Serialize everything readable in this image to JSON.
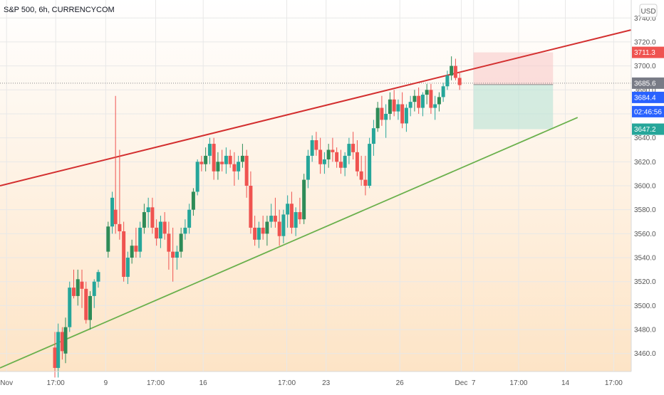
{
  "header": {
    "symbol_label": "S&P 500, 6h, CURRENCYCOM"
  },
  "currency_badge": "USD",
  "chart_data": {
    "type": "candlestick",
    "title": "S&P 500, 6h, CURRENCYCOM",
    "y_ticks": [
      "3740.0",
      "3720.0",
      "3700.0",
      "3680.0",
      "3660.0",
      "3640.0",
      "3620.0",
      "3600.0",
      "3580.0",
      "3560.0",
      "3540.0",
      "3520.0",
      "3500.0",
      "3480.0",
      "3460.0"
    ],
    "x_ticks": [
      "Nov",
      "17:00",
      "9",
      "17:00",
      "16",
      "17:00",
      "23",
      "26",
      "Dec",
      "7",
      "17:00",
      "14",
      "17:00"
    ],
    "ylim": [
      3445,
      3755
    ],
    "price_labels": {
      "target_top": "3711.3",
      "last_price": "3685.6",
      "entry": "3684.4",
      "countdown": "02:46:56",
      "stop_bottom": "3647.2"
    },
    "trendlines": [
      {
        "name": "resistance",
        "color": "#d32f2f",
        "points": [
          [
            0,
            3600
          ],
          [
            77,
            3730
          ]
        ]
      },
      {
        "name": "support",
        "color": "#6ab04c",
        "points": [
          [
            0,
            3448
          ],
          [
            70.5,
            3657
          ]
        ]
      }
    ],
    "position_box": {
      "x_start": 57.8,
      "x_end": 67.5,
      "top": 3711.3,
      "entry": 3684.4,
      "bottom": 3647.2
    },
    "colors": {
      "up": "#26a69a",
      "up_alt": "#2e8b57",
      "down": "#ef5350",
      "grid": "#e8e8e8"
    },
    "candles": [
      [
        6.7,
        3465,
        3478,
        3440,
        3448
      ],
      [
        7.1,
        3448,
        3485,
        3440,
        3478
      ],
      [
        7.6,
        3478,
        3482,
        3455,
        3462
      ],
      [
        8.0,
        3460,
        3490,
        3452,
        3482
      ],
      [
        8.5,
        3482,
        3520,
        3478,
        3515
      ],
      [
        9.0,
        3515,
        3530,
        3506,
        3508
      ],
      [
        9.5,
        3508,
        3530,
        3500,
        3522
      ],
      [
        10.0,
        3520,
        3530,
        3498,
        3514
      ],
      [
        10.5,
        3514,
        3520,
        3485,
        3488
      ],
      [
        11.0,
        3488,
        3512,
        3480,
        3508
      ],
      [
        11.5,
        3508,
        3522,
        3498,
        3520
      ],
      [
        12.0,
        3520,
        3530,
        3515,
        3528
      ],
      [
        13.2,
        3545,
        3570,
        3540,
        3566
      ],
      [
        13.7,
        3566,
        3595,
        3560,
        3590
      ],
      [
        14.1,
        3580,
        3675,
        3560,
        3568
      ],
      [
        14.6,
        3568,
        3630,
        3555,
        3562
      ],
      [
        15.1,
        3562,
        3570,
        3520,
        3524
      ],
      [
        15.6,
        3524,
        3545,
        3518,
        3540
      ],
      [
        16.1,
        3540,
        3555,
        3535,
        3550
      ],
      [
        16.6,
        3550,
        3565,
        3540,
        3545
      ],
      [
        17.1,
        3545,
        3570,
        3540,
        3565
      ],
      [
        17.6,
        3565,
        3585,
        3560,
        3578
      ],
      [
        18.1,
        3578,
        3590,
        3565,
        3582
      ],
      [
        18.6,
        3582,
        3590,
        3560,
        3565
      ],
      [
        19.1,
        3565,
        3572,
        3550,
        3556
      ],
      [
        19.6,
        3556,
        3575,
        3548,
        3570
      ],
      [
        20.1,
        3570,
        3578,
        3555,
        3560
      ],
      [
        20.6,
        3560,
        3570,
        3530,
        3545
      ],
      [
        21.1,
        3545,
        3565,
        3520,
        3540
      ],
      [
        21.6,
        3540,
        3550,
        3530,
        3545
      ],
      [
        22.1,
        3545,
        3565,
        3540,
        3560
      ],
      [
        22.6,
        3560,
        3572,
        3555,
        3565
      ],
      [
        23.1,
        3565,
        3585,
        3560,
        3580
      ],
      [
        23.6,
        3580,
        3598,
        3575,
        3595
      ],
      [
        24.1,
        3595,
        3622,
        3592,
        3620
      ],
      [
        24.6,
        3620,
        3625,
        3612,
        3618
      ],
      [
        25.1,
        3618,
        3632,
        3612,
        3625
      ],
      [
        25.6,
        3625,
        3640,
        3618,
        3635
      ],
      [
        26.1,
        3635,
        3640,
        3605,
        3612
      ],
      [
        26.6,
        3612,
        3628,
        3605,
        3620
      ],
      [
        27.1,
        3620,
        3630,
        3612,
        3618
      ],
      [
        27.6,
        3618,
        3632,
        3610,
        3625
      ],
      [
        28.1,
        3625,
        3630,
        3615,
        3618
      ],
      [
        28.6,
        3618,
        3628,
        3600,
        3612
      ],
      [
        29.1,
        3612,
        3625,
        3605,
        3620
      ],
      [
        29.6,
        3620,
        3635,
        3615,
        3625
      ],
      [
        30.1,
        3625,
        3630,
        3590,
        3600
      ],
      [
        30.6,
        3600,
        3612,
        3560,
        3565
      ],
      [
        31.1,
        3565,
        3575,
        3550,
        3555
      ],
      [
        31.6,
        3555,
        3570,
        3548,
        3565
      ],
      [
        32.1,
        3565,
        3575,
        3555,
        3560
      ],
      [
        32.6,
        3560,
        3575,
        3550,
        3570
      ],
      [
        33.1,
        3570,
        3585,
        3565,
        3575
      ],
      [
        33.6,
        3575,
        3590,
        3565,
        3570
      ],
      [
        34.1,
        3570,
        3580,
        3550,
        3558
      ],
      [
        34.6,
        3558,
        3580,
        3552,
        3576
      ],
      [
        35.1,
        3576,
        3592,
        3565,
        3585
      ],
      [
        35.6,
        3585,
        3595,
        3560,
        3565
      ],
      [
        36.1,
        3565,
        3582,
        3558,
        3578
      ],
      [
        36.6,
        3578,
        3590,
        3568,
        3572
      ],
      [
        37.1,
        3572,
        3610,
        3568,
        3605
      ],
      [
        37.6,
        3605,
        3630,
        3598,
        3625
      ],
      [
        38.1,
        3625,
        3642,
        3620,
        3638
      ],
      [
        38.6,
        3638,
        3645,
        3625,
        3630
      ],
      [
        39.1,
        3630,
        3640,
        3610,
        3618
      ],
      [
        39.6,
        3618,
        3628,
        3610,
        3622
      ],
      [
        40.1,
        3622,
        3635,
        3615,
        3630
      ],
      [
        40.6,
        3630,
        3640,
        3620,
        3628
      ],
      [
        41.1,
        3628,
        3632,
        3615,
        3620
      ],
      [
        41.6,
        3620,
        3630,
        3610,
        3615
      ],
      [
        42.1,
        3615,
        3628,
        3608,
        3625
      ],
      [
        42.6,
        3625,
        3640,
        3618,
        3635
      ],
      [
        43.1,
        3635,
        3645,
        3622,
        3628
      ],
      [
        43.6,
        3628,
        3638,
        3608,
        3612
      ],
      [
        44.1,
        3612,
        3625,
        3600,
        3605
      ],
      [
        44.6,
        3605,
        3625,
        3592,
        3600
      ],
      [
        45.1,
        3600,
        3640,
        3598,
        3635
      ],
      [
        45.6,
        3635,
        3655,
        3625,
        3648
      ],
      [
        46.1,
        3648,
        3670,
        3645,
        3665
      ],
      [
        46.6,
        3665,
        3675,
        3650,
        3655
      ],
      [
        47.1,
        3655,
        3668,
        3640,
        3660
      ],
      [
        47.6,
        3660,
        3678,
        3655,
        3672
      ],
      [
        48.1,
        3672,
        3680,
        3658,
        3662
      ],
      [
        48.6,
        3662,
        3672,
        3655,
        3668
      ],
      [
        49.1,
        3668,
        3678,
        3648,
        3652
      ],
      [
        49.6,
        3652,
        3668,
        3645,
        3665
      ],
      [
        50.1,
        3665,
        3675,
        3658,
        3670
      ],
      [
        50.6,
        3670,
        3680,
        3662,
        3675
      ],
      [
        51.1,
        3675,
        3682,
        3660,
        3665
      ],
      [
        51.6,
        3665,
        3678,
        3658,
        3676
      ],
      [
        52.1,
        3676,
        3685,
        3668,
        3680
      ],
      [
        52.6,
        3680,
        3685,
        3660,
        3665
      ],
      [
        53.1,
        3665,
        3675,
        3655,
        3668
      ],
      [
        53.6,
        3668,
        3678,
        3662,
        3674
      ],
      [
        54.1,
        3674,
        3686,
        3670,
        3683
      ],
      [
        54.6,
        3683,
        3696,
        3680,
        3692
      ],
      [
        55.1,
        3692,
        3708,
        3688,
        3700
      ],
      [
        55.6,
        3700,
        3706,
        3688,
        3690
      ],
      [
        56.1,
        3690,
        3695,
        3680,
        3684
      ]
    ]
  }
}
